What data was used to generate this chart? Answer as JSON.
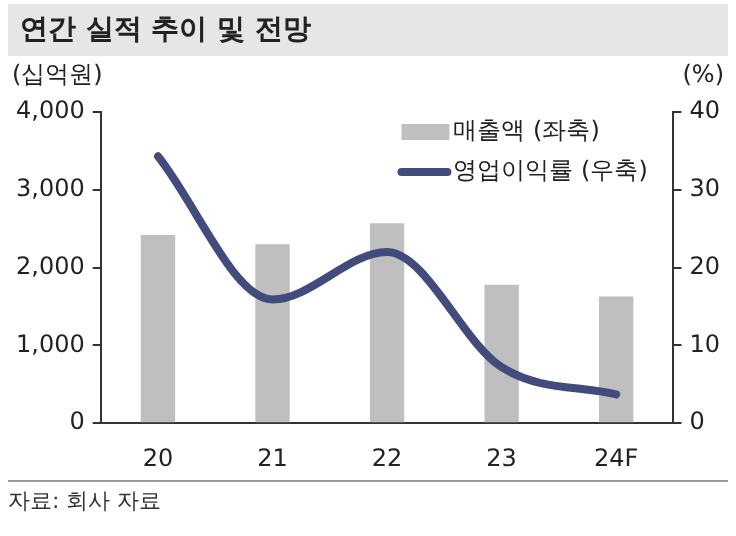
{
  "chart_data": {
    "type": "bar",
    "title": "연간 실적 추이 및 전망",
    "ylabel": "(십억원)",
    "y2label": "(%)",
    "categories": [
      "20",
      "21",
      "22",
      "23",
      "24F"
    ],
    "series": [
      {
        "name": "매출액 (좌축)",
        "color": "#bfbfbf",
        "values": [
          2420,
          2300,
          2570,
          1780,
          1630
        ]
      },
      {
        "name": "영업이익률 (우축)",
        "type": "line",
        "axis": "y2",
        "color": "#414b7c",
        "values": [
          34.3,
          15.9,
          22,
          7.2,
          3.7
        ]
      }
    ],
    "ylim": [
      0,
      4000
    ],
    "yticks": [
      {
        "value": 0,
        "label": "0"
      },
      {
        "value": 1000,
        "label": "1,000"
      },
      {
        "value": 2000,
        "label": "2,000"
      },
      {
        "value": 3000,
        "label": "3,000"
      },
      {
        "value": 4000,
        "label": "4,000"
      }
    ],
    "y2lim": [
      0,
      40
    ],
    "y2ticks": [
      0,
      10,
      20,
      30,
      40
    ],
    "grid": false,
    "legend": "top right",
    "marker": "none",
    "line_style": "solid",
    "annotations": [
      "자료: 회사 자료"
    ]
  }
}
